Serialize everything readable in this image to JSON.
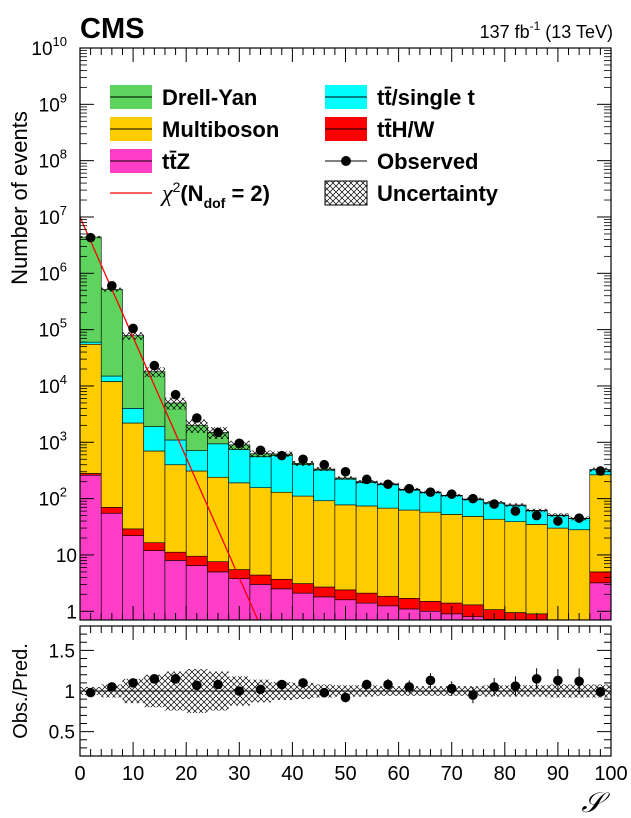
{
  "header": {
    "experiment": "CMS",
    "lumi": "137 fb",
    "lumi_sup": "-1",
    "energy": "(13 TeV)"
  },
  "chart_data": {
    "type": "bar",
    "stacked": true,
    "x_scale": "linear",
    "y_scale": "log",
    "xlim": [
      0,
      100
    ],
    "ylim": [
      0.7,
      10000000000
    ],
    "ratio_ylim": [
      0.2,
      1.8
    ],
    "ylabel": "Number of events",
    "ratio_ylabel": "Obs./Pred.",
    "xlabel": "𝒮",
    "legend_position": "top",
    "x_ticks": [
      "0",
      "10",
      "20",
      "30",
      "40",
      "50",
      "60",
      "70",
      "80",
      "90",
      "100"
    ],
    "y_ticks": [
      {
        "value": 1,
        "base": "1",
        "exp": ""
      },
      {
        "value": 10,
        "base": "10",
        "exp": ""
      },
      {
        "value": 100,
        "base": "10",
        "exp": "2"
      },
      {
        "value": 1000,
        "base": "10",
        "exp": "3"
      },
      {
        "value": 10000,
        "base": "10",
        "exp": "4"
      },
      {
        "value": 100000,
        "base": "10",
        "exp": "5"
      },
      {
        "value": 1000000,
        "base": "10",
        "exp": "6"
      },
      {
        "value": 10000000,
        "base": "10",
        "exp": "7"
      },
      {
        "value": 100000000,
        "base": "10",
        "exp": "8"
      },
      {
        "value": 1000000000,
        "base": "10",
        "exp": "9"
      },
      {
        "value": 10000000000,
        "base": "10",
        "exp": "10"
      }
    ],
    "ratio_ticks": [
      "0.5",
      "1",
      "1.5"
    ],
    "bin_edges": [
      0,
      4,
      8,
      12,
      16,
      20,
      24,
      28,
      32,
      36,
      40,
      44,
      48,
      52,
      56,
      60,
      64,
      68,
      72,
      76,
      80,
      84,
      88,
      92,
      96,
      100
    ],
    "series": [
      {
        "name": "tt̄Z",
        "color": "#ff3ec8",
        "values": [
          260,
          55,
          22,
          12,
          8,
          6.5,
          5,
          3.8,
          3.0,
          2.5,
          2.1,
          1.8,
          1.6,
          1.4,
          1.25,
          1.1,
          1.0,
          0.9,
          0.8,
          0.72,
          0.65,
          0.6,
          0,
          0,
          3.2
        ]
      },
      {
        "name": "tt̄H/W",
        "color": "#ff0000",
        "values": [
          20,
          15,
          7,
          4.5,
          3.2,
          3.0,
          2.6,
          1.7,
          1.4,
          1.2,
          1.0,
          0.9,
          0.8,
          0.7,
          0.6,
          0.6,
          0.5,
          0.5,
          0.5,
          0.35,
          0.3,
          0.3,
          0,
          0,
          1.8
        ]
      },
      {
        "name": "Multiboson",
        "color": "#ffcc00",
        "values": [
          54720,
          11930,
          2171,
          684,
          388,
          300,
          232,
          185,
          152,
          126,
          108,
          89,
          75,
          72,
          66,
          61,
          56,
          51,
          47,
          42,
          38,
          34,
          30,
          28,
          260
        ]
      },
      {
        "name": "tt̄/single t",
        "color": "#00ffff",
        "values": [
          5000,
          3000,
          1800,
          1200,
          700,
          400,
          700,
          550,
          400,
          450,
          290,
          230,
          145,
          120,
          110,
          80,
          70,
          60,
          48,
          40,
          37,
          26,
          20,
          16,
          60
        ]
      },
      {
        "name": "Drell-Yan",
        "color": "#5ed35e",
        "values": [
          4340000,
          500000,
          74000,
          16000,
          3900,
          1300,
          560,
          160,
          70,
          40,
          22,
          14,
          10,
          6,
          5,
          4,
          3,
          2,
          2,
          1.5,
          1.2,
          1,
          0.8,
          0.6,
          3
        ]
      }
    ],
    "observed": {
      "name": "Observed",
      "x": [
        2,
        6,
        10,
        14,
        18,
        22,
        26,
        30,
        34,
        38,
        42,
        46,
        50,
        54,
        58,
        62,
        66,
        70,
        74,
        78,
        82,
        86,
        90,
        94,
        98
      ],
      "values": [
        4300000,
        600000,
        105000,
        23000,
        7000,
        2700,
        1500,
        960,
        720,
        580,
        500,
        400,
        300,
        220,
        180,
        150,
        130,
        120,
        100,
        80,
        60,
        50,
        40,
        45,
        310
      ],
      "ratio": [
        0.98,
        1.05,
        1.1,
        1.15,
        1.15,
        1.07,
        1.08,
        1.0,
        1.02,
        1.08,
        1.1,
        0.98,
        0.92,
        1.08,
        1.08,
        1.05,
        1.13,
        1.03,
        0.95,
        1.05,
        1.06,
        1.15,
        1.13,
        1.12,
        0.99
      ],
      "ratio_err": [
        0.01,
        0.01,
        0.01,
        0.02,
        0.03,
        0.03,
        0.03,
        0.04,
        0.05,
        0.05,
        0.05,
        0.05,
        0.06,
        0.06,
        0.07,
        0.08,
        0.09,
        0.09,
        0.1,
        0.11,
        0.12,
        0.13,
        0.14,
        0.16,
        0.06
      ]
    },
    "uncertainty": {
      "name": "Uncertainty",
      "ratio_half_width": [
        0.05,
        0.08,
        0.15,
        0.2,
        0.24,
        0.27,
        0.24,
        0.18,
        0.14,
        0.11,
        0.1,
        0.08,
        0.07,
        0.07,
        0.06,
        0.06,
        0.06,
        0.06,
        0.06,
        0.07,
        0.07,
        0.07,
        0.08,
        0.08,
        0.08
      ]
    },
    "fit_curve": {
      "name": "χ²(N_dof = 2)",
      "color": "#ff0000",
      "x": [
        0,
        33.5
      ],
      "y": [
        10000000,
        0.7
      ]
    },
    "legend": [
      {
        "key": "Drell-Yan",
        "label": "Drell-Yan",
        "style": "fill",
        "color": "#5ed35e"
      },
      {
        "key": "tt/single t",
        "label": "tt̄/single t",
        "style": "fill",
        "color": "#00ffff"
      },
      {
        "key": "Multiboson",
        "label": "Multiboson",
        "style": "fill",
        "color": "#ffcc00"
      },
      {
        "key": "ttH/W",
        "label": "tt̄H/W",
        "style": "fill",
        "color": "#ff0000"
      },
      {
        "key": "ttZ",
        "label": "tt̄Z",
        "style": "fill",
        "color": "#ff3ec8"
      },
      {
        "key": "Observed",
        "label": "Observed",
        "style": "marker",
        "color": "#000000"
      },
      {
        "key": "chi2",
        "label": "χ²(N_dof = 2)",
        "style": "line",
        "color": "#ff0000"
      },
      {
        "key": "Uncertainty",
        "label": "Uncertainty",
        "style": "hatch",
        "color": "#000000"
      }
    ]
  }
}
